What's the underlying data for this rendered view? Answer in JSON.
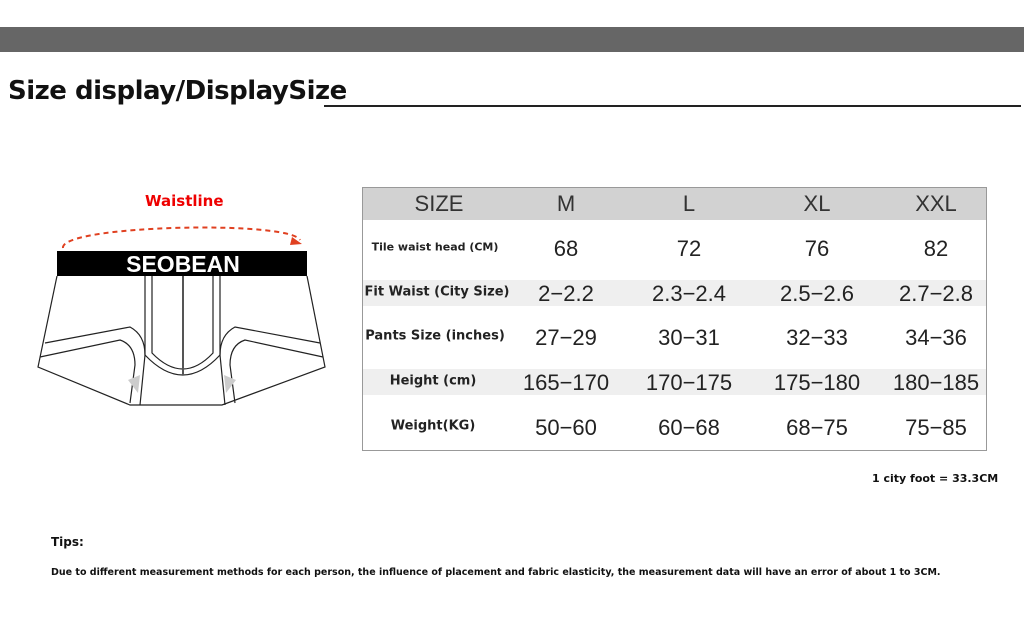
{
  "header": {
    "title": "Size display/DisplaySize"
  },
  "diagram": {
    "measure_label": "Waistline",
    "brand": "SEOBEAN"
  },
  "table": {
    "columns": [
      "SIZE",
      "M",
      "L",
      "XL",
      "XXL"
    ],
    "rows": [
      {
        "label": "Tile waist head (CM)",
        "values": [
          "68",
          "72",
          "76",
          "82"
        ]
      },
      {
        "label": "Fit Waist (City Size)",
        "values": [
          "2−2.2",
          "2.3−2.4",
          "2.5−2.6",
          "2.7−2.8"
        ]
      },
      {
        "label": "Pants Size (inches)",
        "values": [
          "27−29",
          "30−31",
          "32−33",
          "34−36"
        ]
      },
      {
        "label": "Height (cm)",
        "values": [
          "165−170",
          "170−175",
          "175−180",
          "180−185"
        ]
      },
      {
        "label": "Weight(KG)",
        "values": [
          "50−60",
          "60−68",
          "68−75",
          "75−85"
        ]
      }
    ]
  },
  "footnote": "1 city foot = 33.3CM",
  "tips": {
    "label": "Tips:",
    "text": "Due to different measurement methods for each person, the influence of placement and fabric elasticity, the measurement data will have an error of about 1 to 3CM."
  },
  "colors": {
    "accent": "#e00000",
    "header_bar": "#666666",
    "table_header": "#d2d2d2"
  }
}
